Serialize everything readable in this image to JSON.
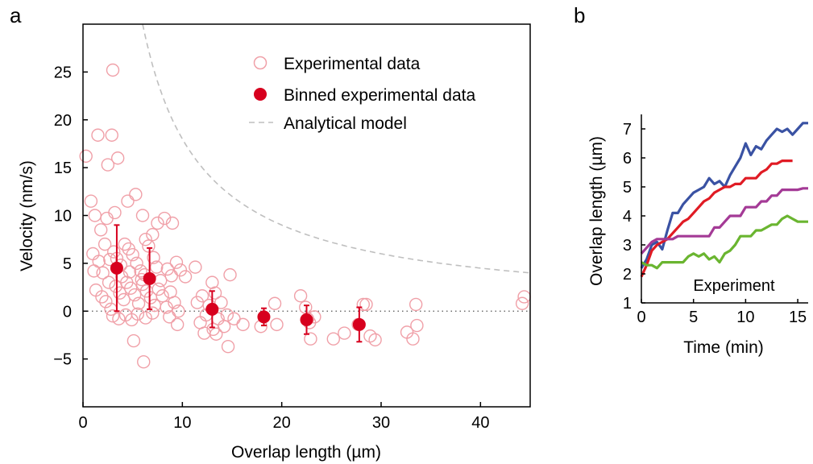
{
  "panel_labels": {
    "a": "a",
    "b": "b"
  },
  "chart_data": [
    {
      "type": "scatter",
      "panel": "a",
      "xlabel": "Overlap length (µm)",
      "ylabel": "Velocity (nm/s)",
      "xlim": [
        0,
        45
      ],
      "ylim": [
        -10,
        30
      ],
      "xticks": [
        0,
        10,
        20,
        30,
        40
      ],
      "yticks": [
        -5,
        0,
        5,
        10,
        15,
        20,
        25
      ],
      "tick_labels_x": [
        "0",
        "10",
        "20",
        "30",
        "40"
      ],
      "tick_labels_y": [
        "−5",
        "0",
        "5",
        "10",
        "15",
        "20",
        "25"
      ],
      "grid": false,
      "legend_position": "top-right",
      "zero_line": "dotted",
      "colors": {
        "experimental": "#f0a0a8",
        "binned": "#d7001e",
        "model": "#bfbfbf"
      },
      "legend": [
        "Experimental data",
        "Binned experimental data",
        "Analytical model"
      ],
      "series": [
        {
          "name": "Experimental data",
          "style": "open-circle",
          "points": [
            [
              0.3,
              16.2
            ],
            [
              1.5,
              18.4
            ],
            [
              2.9,
              18.4
            ],
            [
              3.0,
              25.2
            ],
            [
              2.5,
              15.3
            ],
            [
              3.5,
              16.0
            ],
            [
              0.8,
              11.5
            ],
            [
              1.2,
              10.0
            ],
            [
              1.8,
              8.5
            ],
            [
              2.4,
              9.7
            ],
            [
              4.5,
              11.5
            ],
            [
              5.3,
              12.2
            ],
            [
              6.0,
              10.0
            ],
            [
              7.5,
              9.2
            ],
            [
              8.2,
              9.7
            ],
            [
              9.0,
              9.2
            ],
            [
              7.0,
              8.0
            ],
            [
              6.3,
              7.5
            ],
            [
              3.2,
              10.3
            ],
            [
              2.2,
              7.0
            ],
            [
              1.0,
              6.0
            ],
            [
              1.6,
              5.2
            ],
            [
              2.0,
              4.0
            ],
            [
              2.6,
              3.0
            ],
            [
              3.1,
              6.2
            ],
            [
              3.4,
              5.5
            ],
            [
              3.8,
              4.8
            ],
            [
              4.2,
              7.0
            ],
            [
              4.6,
              6.5
            ],
            [
              5.0,
              5.9
            ],
            [
              5.4,
              5.0
            ],
            [
              5.8,
              4.2
            ],
            [
              6.2,
              3.8
            ],
            [
              6.6,
              6.8
            ],
            [
              7.1,
              5.6
            ],
            [
              7.4,
              4.6
            ],
            [
              7.8,
              3.2
            ],
            [
              8.5,
              4.4
            ],
            [
              8.9,
              3.7
            ],
            [
              9.4,
              5.1
            ],
            [
              9.8,
              4.3
            ],
            [
              10.3,
              3.6
            ],
            [
              11.3,
              4.6
            ],
            [
              1.3,
              2.2
            ],
            [
              1.9,
              1.5
            ],
            [
              2.3,
              1.0
            ],
            [
              2.8,
              0.2
            ],
            [
              3.3,
              2.6
            ],
            [
              3.7,
              1.9
            ],
            [
              4.1,
              1.2
            ],
            [
              4.4,
              3.0
            ],
            [
              4.8,
              2.4
            ],
            [
              5.2,
              1.7
            ],
            [
              5.6,
              0.8
            ],
            [
              6.0,
              2.8
            ],
            [
              6.4,
              2.1
            ],
            [
              6.8,
              1.4
            ],
            [
              7.2,
              0.6
            ],
            [
              7.6,
              2.3
            ],
            [
              8.0,
              1.6
            ],
            [
              8.4,
              0.4
            ],
            [
              8.8,
              2.0
            ],
            [
              9.2,
              0.9
            ],
            [
              9.6,
              0.0
            ],
            [
              3.0,
              -0.5
            ],
            [
              3.6,
              -0.8
            ],
            [
              4.3,
              -0.4
            ],
            [
              4.9,
              -0.9
            ],
            [
              5.5,
              -0.3
            ],
            [
              6.3,
              -0.7
            ],
            [
              7.0,
              -0.2
            ],
            [
              8.7,
              -0.6
            ],
            [
              9.5,
              -1.4
            ],
            [
              5.1,
              -3.1
            ],
            [
              6.1,
              -5.3
            ],
            [
              1.1,
              4.2
            ],
            [
              2.7,
              5.4
            ],
            [
              3.9,
              3.6
            ],
            [
              4.7,
              4.1
            ],
            [
              5.9,
              3.3
            ],
            [
              12.0,
              1.6
            ],
            [
              12.4,
              -0.4
            ],
            [
              12.7,
              0.6
            ],
            [
              13.0,
              3.0
            ],
            [
              13.3,
              1.9
            ],
            [
              13.6,
              -0.8
            ],
            [
              13.9,
              0.9
            ],
            [
              14.2,
              -1.6
            ],
            [
              14.5,
              -0.4
            ],
            [
              14.8,
              3.8
            ],
            [
              14.6,
              -3.7
            ],
            [
              11.8,
              -1.2
            ],
            [
              12.2,
              -2.3
            ],
            [
              13.1,
              -1.9
            ],
            [
              15.2,
              -0.8
            ],
            [
              11.5,
              0.9
            ],
            [
              16.1,
              -1.4
            ],
            [
              17.9,
              -1.6
            ],
            [
              19.3,
              0.8
            ],
            [
              19.5,
              -1.4
            ],
            [
              21.9,
              1.6
            ],
            [
              22.4,
              0.4
            ],
            [
              22.6,
              -0.8
            ],
            [
              22.8,
              -1.2
            ],
            [
              22.9,
              -2.9
            ],
            [
              23.3,
              -0.6
            ],
            [
              25.2,
              -2.9
            ],
            [
              26.3,
              -2.3
            ],
            [
              27.7,
              -1.4
            ],
            [
              28.2,
              0.7
            ],
            [
              28.5,
              0.7
            ],
            [
              28.9,
              -2.6
            ],
            [
              29.4,
              -3.0
            ],
            [
              32.6,
              -2.2
            ],
            [
              33.2,
              -2.9
            ],
            [
              33.5,
              0.7
            ],
            [
              33.6,
              -1.5
            ],
            [
              44.2,
              0.8
            ],
            [
              44.4,
              1.5
            ],
            [
              13.4,
              -2.4
            ]
          ]
        },
        {
          "name": "Binned experimental data",
          "style": "filled-circle-errorbar",
          "points": [
            {
              "x": 3.4,
              "y": 4.5,
              "err": 4.5
            },
            {
              "x": 6.7,
              "y": 3.4,
              "err": 3.2
            },
            {
              "x": 13.0,
              "y": 0.2,
              "err": 1.9
            },
            {
              "x": 18.2,
              "y": -0.6,
              "err": 0.9
            },
            {
              "x": 22.5,
              "y": -0.9,
              "err": 1.5
            },
            {
              "x": 27.8,
              "y": -1.4,
              "err": 1.8
            }
          ]
        },
        {
          "name": "Analytical model",
          "style": "dashed-line",
          "coef": 180,
          "x_range": [
            6,
            45
          ]
        }
      ]
    },
    {
      "type": "line",
      "panel": "b",
      "xlabel": "Time (min)",
      "ylabel": "Overlap length (µm)",
      "xlim": [
        0,
        16
      ],
      "ylim": [
        1,
        7.5
      ],
      "xticks": [
        0,
        5,
        10,
        15
      ],
      "yticks": [
        1,
        2,
        3,
        4,
        5,
        6,
        7
      ],
      "tick_labels_x": [
        "0",
        "5",
        "10",
        "15"
      ],
      "tick_labels_y": [
        "1",
        "2",
        "3",
        "4",
        "5",
        "6",
        "7"
      ],
      "annotation": "Experiment",
      "grid": false,
      "series": [
        {
          "color": "#3a52a3",
          "x": [
            0,
            0.5,
            1,
            1.5,
            2,
            2.5,
            3,
            3.5,
            4,
            4.5,
            5,
            5.5,
            6,
            6.5,
            7,
            7.5,
            8,
            8.5,
            9,
            9.5,
            10,
            10.5,
            11,
            11.5,
            12,
            12.5,
            13,
            13.5,
            14,
            14.5,
            15,
            15.5,
            16
          ],
          "y": [
            2.2,
            2.5,
            3.0,
            3.1,
            2.85,
            3.5,
            4.1,
            4.1,
            4.4,
            4.6,
            4.8,
            4.9,
            5.0,
            5.3,
            5.1,
            5.2,
            5.0,
            5.4,
            5.7,
            6.0,
            6.5,
            6.1,
            6.4,
            6.3,
            6.6,
            6.8,
            7.0,
            6.9,
            7.0,
            6.8,
            7.0,
            7.2,
            7.2
          ]
        },
        {
          "color": "#e01b24",
          "x": [
            0,
            0.5,
            1,
            1.5,
            2,
            2.5,
            3,
            3.5,
            4,
            4.5,
            5,
            5.5,
            6,
            6.5,
            7,
            7.5,
            8,
            8.5,
            9,
            9.5,
            10,
            10.5,
            11,
            11.5,
            12,
            12.5,
            13,
            13.5,
            14,
            14.5
          ],
          "y": [
            1.9,
            2.3,
            2.8,
            3.0,
            3.1,
            3.2,
            3.4,
            3.6,
            3.8,
            3.9,
            4.1,
            4.3,
            4.5,
            4.6,
            4.8,
            4.9,
            5.0,
            5.0,
            5.1,
            5.1,
            5.3,
            5.3,
            5.3,
            5.5,
            5.6,
            5.8,
            5.8,
            5.9,
            5.9,
            5.9
          ]
        },
        {
          "color": "#a43a96",
          "x": [
            0,
            0.5,
            1,
            1.5,
            2,
            2.5,
            3,
            3.5,
            4,
            4.5,
            5,
            5.5,
            6,
            6.5,
            7,
            7.5,
            8,
            8.5,
            9,
            9.5,
            10,
            10.5,
            11,
            11.5,
            12,
            12.5,
            13,
            13.5,
            14,
            14.5,
            15,
            15.5,
            16
          ],
          "y": [
            2.7,
            2.9,
            3.1,
            3.2,
            3.2,
            3.2,
            3.2,
            3.3,
            3.3,
            3.3,
            3.3,
            3.3,
            3.3,
            3.3,
            3.6,
            3.6,
            3.8,
            4.0,
            4.0,
            4.0,
            4.3,
            4.3,
            4.3,
            4.5,
            4.5,
            4.7,
            4.7,
            4.9,
            4.9,
            4.9,
            4.9,
            4.95,
            4.95
          ]
        },
        {
          "color": "#6ab530",
          "x": [
            0,
            0.5,
            1,
            1.5,
            2,
            2.5,
            3,
            3.5,
            4,
            4.5,
            5,
            5.5,
            6,
            6.5,
            7,
            7.5,
            8,
            8.5,
            9,
            9.5,
            10,
            10.5,
            11,
            11.5,
            12,
            12.5,
            13,
            13.5,
            14,
            14.5,
            15,
            15.5,
            16
          ],
          "y": [
            2.4,
            2.3,
            2.3,
            2.2,
            2.4,
            2.4,
            2.4,
            2.4,
            2.4,
            2.6,
            2.7,
            2.6,
            2.7,
            2.5,
            2.6,
            2.4,
            2.7,
            2.8,
            3.0,
            3.3,
            3.3,
            3.3,
            3.5,
            3.5,
            3.6,
            3.7,
            3.7,
            3.9,
            4.0,
            3.9,
            3.8,
            3.8,
            3.8
          ]
        }
      ]
    }
  ]
}
